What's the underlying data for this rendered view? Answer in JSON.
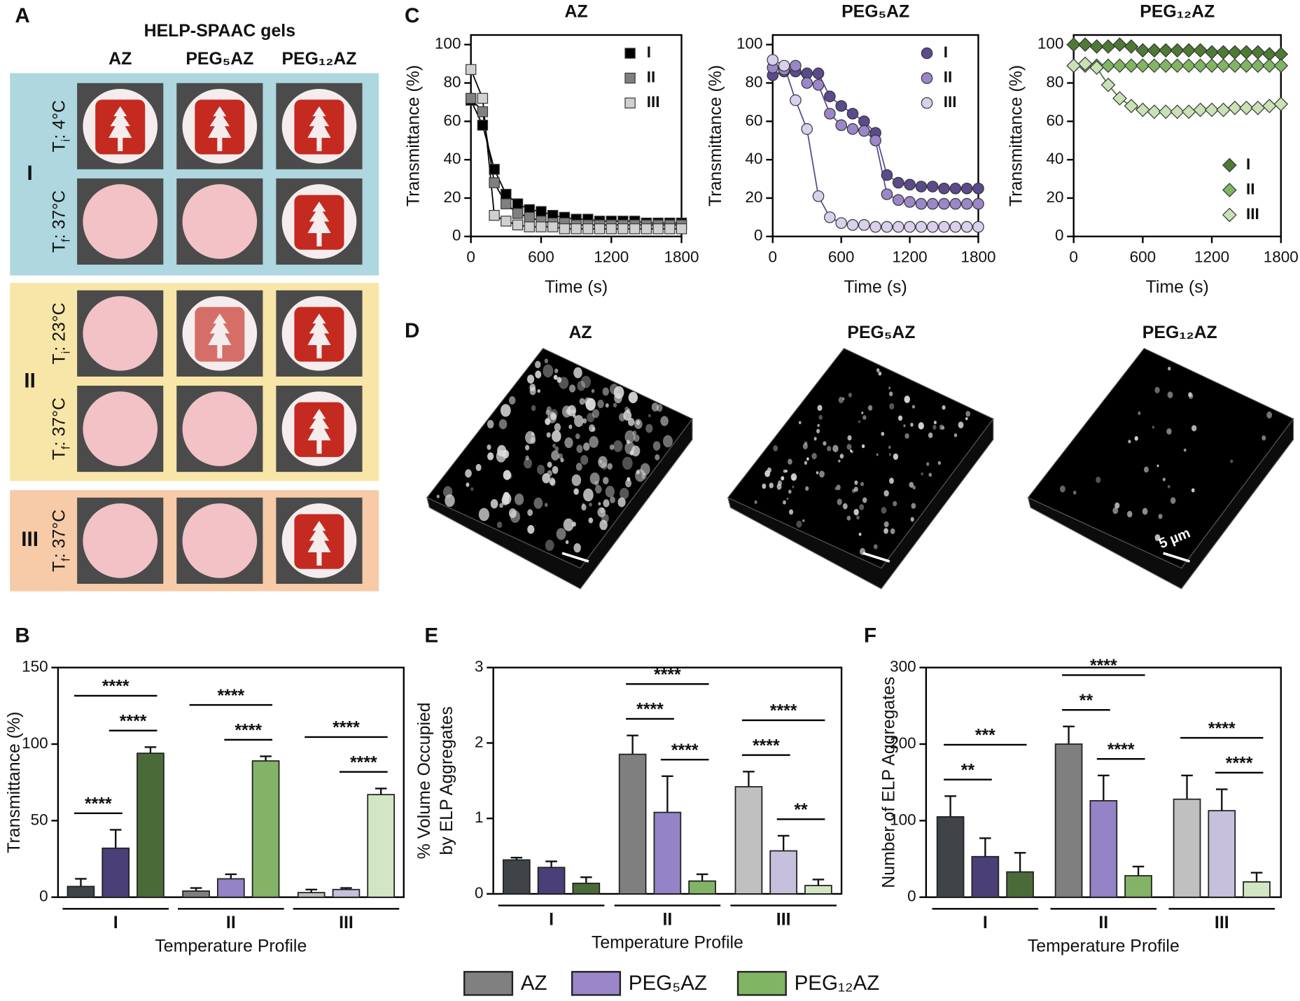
{
  "panel_labels": [
    "A",
    "B",
    "C",
    "D",
    "E",
    "F"
  ],
  "panel_a": {
    "title": "HELP-SPAAC gels",
    "columns": [
      "AZ",
      "PEG₅AZ",
      "PEG₁₂AZ"
    ],
    "colors": [
      "#000000",
      "#7b6aa8",
      "#6f9a58"
    ],
    "groups": [
      {
        "label": "I",
        "rows": [
          {
            "symbol": "T",
            "subscript": "i",
            "text": ": 4°C"
          },
          {
            "symbol": "T",
            "subscript": "f",
            "text": ": 37°C"
          }
        ]
      },
      {
        "label": "II",
        "rows": [
          {
            "symbol": "T",
            "subscript": "i",
            "text": ": 23°C"
          },
          {
            "symbol": "T",
            "subscript": "f",
            "text": ": 37°C"
          }
        ]
      },
      {
        "label": "III",
        "rows": [
          {
            "symbol": "T",
            "subscript": "f",
            "text": ": 37°C"
          }
        ]
      }
    ]
  },
  "panel_d": {
    "titles": [
      "AZ",
      "PEG₅AZ",
      "PEG₁₂AZ"
    ],
    "colors": [
      "#000000",
      "#7b6aa8",
      "#6f9a58"
    ],
    "scale_bar": "5 µm"
  },
  "legend": {
    "items": [
      {
        "label": "AZ",
        "color": "#808080"
      },
      {
        "label": "PEG₅AZ",
        "color": "#9a86c8"
      },
      {
        "label": "PEG₁₂AZ",
        "color": "#7fb563"
      }
    ]
  },
  "chart_data": [
    {
      "type": "line",
      "title": "AZ",
      "title_color": "#000000",
      "xlabel": "Time (s)",
      "ylabel": "Transmittance (%)",
      "x": [
        0,
        100,
        200,
        300,
        400,
        500,
        600,
        700,
        800,
        900,
        1000,
        1100,
        1200,
        1300,
        1400,
        1500,
        1600,
        1700,
        1800
      ],
      "xlim": [
        0,
        1800
      ],
      "xticks": [
        0,
        600,
        1200,
        1800
      ],
      "ylim": [
        0,
        105
      ],
      "yticks": [
        0,
        20,
        40,
        60,
        80,
        100
      ],
      "marker": "square",
      "line_color": "#000000",
      "legend": "upper right",
      "series": [
        {
          "name": "I",
          "color": "#000000",
          "values": [
            71,
            58,
            35,
            22,
            17,
            14,
            13,
            11,
            10,
            9,
            9,
            8,
            8,
            8,
            8,
            7,
            7,
            7,
            7
          ]
        },
        {
          "name": "II",
          "color": "#808080",
          "values": [
            72,
            65,
            28,
            17,
            12,
            10,
            8,
            7,
            7,
            6,
            6,
            6,
            6,
            6,
            6,
            6,
            6,
            6,
            6
          ]
        },
        {
          "name": "III",
          "color": "#d0d0d0",
          "values": [
            87,
            72,
            11,
            8,
            6,
            5,
            5,
            5,
            4,
            4,
            4,
            4,
            4,
            4,
            4,
            4,
            4,
            4,
            4
          ]
        }
      ]
    },
    {
      "type": "line",
      "title": "PEG₅AZ",
      "title_color": "#7b6aa8",
      "xlabel": "Time (s)",
      "ylabel": "Transmittance (%)",
      "x": [
        0,
        100,
        200,
        300,
        400,
        500,
        600,
        700,
        800,
        900,
        1000,
        1100,
        1200,
        1300,
        1400,
        1500,
        1600,
        1700,
        1800
      ],
      "xlim": [
        0,
        1800
      ],
      "xticks": [
        0,
        600,
        1200,
        1800
      ],
      "ylim": [
        0,
        105
      ],
      "yticks": [
        0,
        20,
        40,
        60,
        80,
        100
      ],
      "marker": "circle",
      "line_color": "#5b4a8c",
      "legend": "upper right",
      "series": [
        {
          "name": "I",
          "color": "#5b4a8c",
          "values": [
            84,
            86,
            86,
            85,
            85,
            73,
            68,
            64,
            60,
            54,
            32,
            28,
            27,
            26,
            26,
            25,
            25,
            25,
            25
          ]
        },
        {
          "name": "II",
          "color": "#9a86c8",
          "values": [
            88,
            87,
            89,
            80,
            79,
            64,
            58,
            56,
            55,
            50,
            22,
            19,
            18,
            17,
            17,
            17,
            17,
            17,
            17
          ]
        },
        {
          "name": "III",
          "color": "#d9d0ee",
          "values": [
            92,
            89,
            71,
            56,
            21,
            10,
            7,
            6,
            6,
            5,
            5,
            5,
            5,
            5,
            5,
            5,
            5,
            5,
            5
          ]
        }
      ]
    },
    {
      "type": "line",
      "title": "PEG₁₂AZ",
      "title_color": "#6f9a58",
      "xlabel": "Time (s)",
      "ylabel": "Transmittance (%)",
      "x": [
        0,
        100,
        200,
        300,
        400,
        500,
        600,
        700,
        800,
        900,
        1000,
        1100,
        1200,
        1300,
        1400,
        1500,
        1600,
        1700,
        1800
      ],
      "xlim": [
        0,
        1800
      ],
      "xticks": [
        0,
        600,
        1200,
        1800
      ],
      "ylim": [
        0,
        105
      ],
      "yticks": [
        0,
        20,
        40,
        60,
        80,
        100
      ],
      "marker": "diamond",
      "line_color": "#4d7a35",
      "legend": "lower right",
      "series": [
        {
          "name": "I",
          "color": "#4d7a35",
          "values": [
            100,
            100,
            99,
            99,
            100,
            99,
            97,
            97,
            97,
            97,
            97,
            97,
            96,
            96,
            96,
            96,
            96,
            95,
            95
          ]
        },
        {
          "name": "II",
          "color": "#7fb563",
          "values": [
            89,
            89,
            89,
            89,
            89,
            89,
            89,
            89,
            89,
            89,
            89,
            89,
            89,
            89,
            89,
            89,
            89,
            89,
            89
          ]
        },
        {
          "name": "III",
          "color": "#c9e2b5",
          "values": [
            89,
            90,
            88,
            79,
            72,
            68,
            66,
            65,
            65,
            65,
            65,
            66,
            66,
            66,
            67,
            67,
            67,
            68,
            69
          ]
        }
      ]
    },
    {
      "type": "bar",
      "xlabel": "Temperature Profile",
      "ylabel": [
        "Transmittance (%)"
      ],
      "categories": [
        "I",
        "II",
        "III"
      ],
      "ylim": [
        0,
        150
      ],
      "yticks": [
        0,
        50,
        100,
        150
      ],
      "series": [
        {
          "name": "AZ",
          "colors": [
            "#3f4448",
            "#7f7f7f",
            "#c0c0c0"
          ],
          "values": [
            7,
            4,
            3
          ],
          "errors": [
            5,
            2,
            2
          ]
        },
        {
          "name": "PEG₅AZ",
          "colors": [
            "#4b3f78",
            "#9483c6",
            "#c6c0dc"
          ],
          "values": [
            32,
            12,
            5
          ],
          "errors": [
            12,
            3,
            1
          ]
        },
        {
          "name": "PEG₁₂AZ",
          "colors": [
            "#4a6b38",
            "#82b366",
            "#d3e6c3"
          ],
          "values": [
            94,
            89,
            67
          ],
          "errors": [
            4,
            3,
            4
          ]
        }
      ],
      "comparisons": [
        {
          "category": 0,
          "series": [
            0,
            1
          ],
          "label": "****"
        },
        {
          "category": 0,
          "series": [
            1,
            2
          ],
          "label": "****"
        },
        {
          "category": 0,
          "series": [
            0,
            2
          ],
          "label": "****"
        },
        {
          "category": 1,
          "series": [
            1,
            2
          ],
          "label": "****"
        },
        {
          "category": 1,
          "series": [
            0,
            2
          ],
          "label": "****"
        },
        {
          "category": 2,
          "series": [
            1,
            2
          ],
          "label": "****"
        },
        {
          "category": 2,
          "series": [
            0,
            2
          ],
          "label": "****"
        }
      ]
    },
    {
      "type": "bar",
      "xlabel": "Temperature Profile",
      "ylabel": [
        "% Volume Occupied",
        "by ELP Aggregates"
      ],
      "categories": [
        "I",
        "II",
        "III"
      ],
      "ylim": [
        0,
        3
      ],
      "yticks": [
        0,
        1,
        2,
        3
      ],
      "series": [
        {
          "name": "AZ",
          "colors": [
            "#3f4448",
            "#7f7f7f",
            "#c0c0c0"
          ],
          "values": [
            0.45,
            1.85,
            1.42
          ],
          "errors": [
            0.03,
            0.25,
            0.2
          ]
        },
        {
          "name": "PEG₅AZ",
          "colors": [
            "#4b3f78",
            "#9483c6",
            "#c6c0dc"
          ],
          "values": [
            0.35,
            1.08,
            0.57
          ],
          "errors": [
            0.08,
            0.48,
            0.2
          ]
        },
        {
          "name": "PEG₁₂AZ",
          "colors": [
            "#4a6b38",
            "#82b366",
            "#d3e6c3"
          ],
          "values": [
            0.14,
            0.17,
            0.11
          ],
          "errors": [
            0.08,
            0.09,
            0.08
          ]
        }
      ],
      "comparisons": [
        {
          "category": 1,
          "series": [
            1,
            2
          ],
          "label": "****"
        },
        {
          "category": 1,
          "series": [
            0,
            1
          ],
          "label": "****"
        },
        {
          "category": 1,
          "series": [
            0,
            2
          ],
          "label": "****"
        },
        {
          "category": 2,
          "series": [
            1,
            2
          ],
          "label": "**"
        },
        {
          "category": 2,
          "series": [
            0,
            1
          ],
          "label": "****"
        },
        {
          "category": 2,
          "series": [
            0,
            2
          ],
          "label": "****"
        }
      ]
    },
    {
      "type": "bar",
      "xlabel": "Temperature Profile",
      "ylabel": [
        "Number of ELP Aggregates"
      ],
      "categories": [
        "I",
        "II",
        "III"
      ],
      "ylim": [
        0,
        300
      ],
      "yticks": [
        0,
        100,
        200,
        300
      ],
      "series": [
        {
          "name": "AZ",
          "colors": [
            "#3f4448",
            "#7f7f7f",
            "#c0c0c0"
          ],
          "values": [
            105,
            200,
            128
          ],
          "errors": [
            27,
            23,
            31
          ]
        },
        {
          "name": "PEG₅AZ",
          "colors": [
            "#4b3f78",
            "#9483c6",
            "#c6c0dc"
          ],
          "values": [
            53,
            126,
            113
          ],
          "errors": [
            24,
            33,
            28
          ]
        },
        {
          "name": "PEG₁₂AZ",
          "colors": [
            "#4a6b38",
            "#82b366",
            "#d3e6c3"
          ],
          "values": [
            33,
            28,
            20
          ],
          "errors": [
            25,
            12,
            12
          ]
        }
      ],
      "comparisons": [
        {
          "category": 0,
          "series": [
            0,
            1
          ],
          "label": "**"
        },
        {
          "category": 0,
          "series": [
            0,
            2
          ],
          "label": "***"
        },
        {
          "category": 1,
          "series": [
            1,
            2
          ],
          "label": "****"
        },
        {
          "category": 1,
          "series": [
            0,
            1
          ],
          "label": "**"
        },
        {
          "category": 1,
          "series": [
            0,
            2
          ],
          "label": "****"
        },
        {
          "category": 2,
          "series": [
            1,
            2
          ],
          "label": "****"
        },
        {
          "category": 2,
          "series": [
            0,
            2
          ],
          "label": "****"
        }
      ]
    }
  ]
}
